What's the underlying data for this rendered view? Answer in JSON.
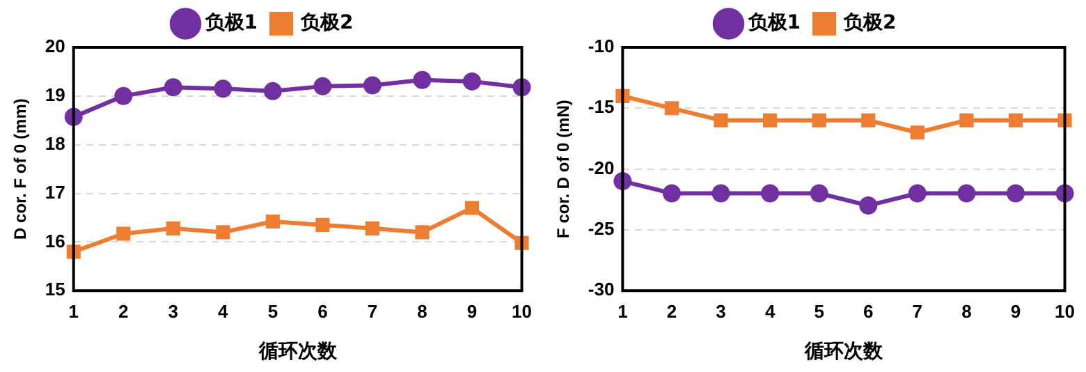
{
  "chart_data": [
    {
      "type": "line",
      "xlabel": "循环次数",
      "ylabel": "D cor. F of 0 (mm)",
      "categories": [
        "1",
        "2",
        "3",
        "4",
        "5",
        "6",
        "7",
        "8",
        "9",
        "10"
      ],
      "series": [
        {
          "name": "负极1",
          "color": "#7030a0",
          "marker": "circle",
          "values": [
            18.57,
            19.0,
            19.18,
            19.15,
            19.1,
            19.2,
            19.22,
            19.33,
            19.3,
            19.18
          ]
        },
        {
          "name": "负极2",
          "color": "#ed7d31",
          "marker": "square",
          "values": [
            15.8,
            16.17,
            16.28,
            16.2,
            16.42,
            16.35,
            16.28,
            16.2,
            16.7,
            15.98
          ]
        }
      ],
      "ylim": [
        15,
        20
      ],
      "yticks": [
        15,
        16,
        17,
        18,
        19,
        20
      ],
      "grid": "y",
      "legend": "top"
    },
    {
      "type": "line",
      "xlabel": "循环次数",
      "ylabel": "F cor. D of 0 (mN)",
      "categories": [
        "1",
        "2",
        "3",
        "4",
        "5",
        "6",
        "7",
        "8",
        "9",
        "10"
      ],
      "series": [
        {
          "name": "负极1",
          "color": "#7030a0",
          "marker": "circle",
          "values": [
            -21,
            -22,
            -22,
            -22,
            -22,
            -23,
            -22,
            -22,
            -22,
            -22
          ]
        },
        {
          "name": "负极2",
          "color": "#ed7d31",
          "marker": "square",
          "values": [
            -14,
            -15,
            -16,
            -16,
            -16,
            -16,
            -17,
            -16,
            -16,
            -16
          ]
        }
      ],
      "ylim": [
        -30,
        -10
      ],
      "yticks": [
        -30,
        -25,
        -20,
        -15,
        -10
      ],
      "grid": "y",
      "legend": "top"
    }
  ]
}
